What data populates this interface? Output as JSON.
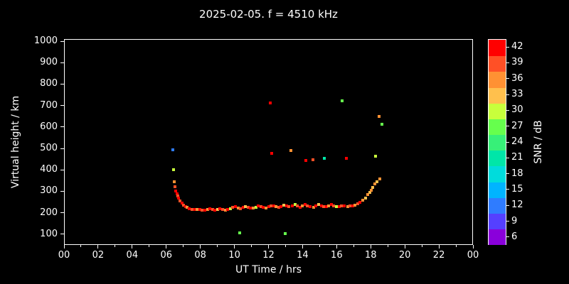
{
  "title": "2025-02-05. f = 4510 kHz",
  "axes": {
    "x": {
      "label": "UT Time / hrs",
      "min": 0,
      "max": 24,
      "tick_values": [
        0,
        2,
        4,
        6,
        8,
        10,
        12,
        14,
        16,
        18,
        20,
        22,
        24
      ],
      "tick_labels": [
        "00",
        "02",
        "04",
        "06",
        "08",
        "10",
        "12",
        "14",
        "16",
        "18",
        "20",
        "22",
        "00"
      ],
      "minor_tick_values": [
        1,
        3,
        5,
        7,
        9,
        11,
        13,
        15,
        17,
        19,
        21,
        23
      ]
    },
    "y": {
      "label": "Virtual height / km",
      "min": 50,
      "max": 1010,
      "tick_values": [
        100,
        200,
        300,
        400,
        500,
        600,
        700,
        800,
        900,
        1000
      ],
      "tick_labels": [
        "100",
        "200",
        "300",
        "400",
        "500",
        "600",
        "700",
        "800",
        "900",
        "1000"
      ]
    }
  },
  "colorbar": {
    "label": "SNR / dB",
    "min": 4.5,
    "max": 43.5,
    "tick_values": [
      6,
      9,
      12,
      15,
      18,
      21,
      24,
      27,
      30,
      33,
      36,
      39,
      42
    ],
    "tick_labels": [
      "6",
      "9",
      "12",
      "15",
      "18",
      "21",
      "24",
      "27",
      "30",
      "33",
      "36",
      "39",
      "42"
    ],
    "stops": [
      [
        6,
        "#8a00db"
      ],
      [
        9,
        "#5540ff"
      ],
      [
        12,
        "#2f7cff"
      ],
      [
        15,
        "#00b4ff"
      ],
      [
        18,
        "#00dcdc"
      ],
      [
        21,
        "#00e6a8"
      ],
      [
        24,
        "#37f078"
      ],
      [
        27,
        "#66ff4d"
      ],
      [
        30,
        "#c8ff3c"
      ],
      [
        33,
        "#ffc04d"
      ],
      [
        36,
        "#ff9133"
      ],
      [
        39,
        "#ff5026"
      ],
      [
        42,
        "#ff0000"
      ]
    ]
  },
  "chart_data": {
    "type": "scatter",
    "title": "2025-02-05. f = 4510 kHz",
    "xlabel": "UT Time / hrs",
    "ylabel": "Virtual height / km",
    "color_label": "SNR / dB",
    "xlim": [
      0,
      24
    ],
    "ylim": [
      50,
      1010
    ],
    "clim": [
      6,
      42
    ],
    "legend": "colorbar-right",
    "grid": false,
    "points_format": "[ut_hour, virtual_height_km, snr_db]",
    "points": [
      [
        6.35,
        495,
        12
      ],
      [
        6.4,
        400,
        30
      ],
      [
        6.45,
        345,
        36
      ],
      [
        6.5,
        320,
        39
      ],
      [
        6.55,
        300,
        42
      ],
      [
        6.6,
        288,
        42
      ],
      [
        6.65,
        278,
        39
      ],
      [
        6.7,
        268,
        42
      ],
      [
        6.8,
        255,
        39
      ],
      [
        6.9,
        245,
        42
      ],
      [
        7.0,
        235,
        39
      ],
      [
        7.1,
        228,
        42
      ],
      [
        7.2,
        222,
        36
      ],
      [
        7.35,
        218,
        42
      ],
      [
        7.5,
        215,
        39
      ],
      [
        7.65,
        213,
        42
      ],
      [
        7.8,
        212,
        36
      ],
      [
        7.95,
        214,
        42
      ],
      [
        8.1,
        211,
        39
      ],
      [
        8.25,
        210,
        42
      ],
      [
        8.4,
        213,
        36
      ],
      [
        8.55,
        216,
        42
      ],
      [
        8.7,
        212,
        39
      ],
      [
        8.85,
        210,
        42
      ],
      [
        9.0,
        213,
        33
      ],
      [
        9.15,
        216,
        42
      ],
      [
        9.3,
        212,
        39
      ],
      [
        9.45,
        210,
        36
      ],
      [
        9.6,
        214,
        42
      ],
      [
        9.75,
        218,
        30
      ],
      [
        9.9,
        222,
        39
      ],
      [
        10.05,
        226,
        42
      ],
      [
        10.2,
        221,
        36
      ],
      [
        10.3,
        105,
        27
      ],
      [
        10.35,
        218,
        39
      ],
      [
        10.5,
        223,
        42
      ],
      [
        10.65,
        228,
        33
      ],
      [
        10.8,
        225,
        39
      ],
      [
        10.95,
        221,
        42
      ],
      [
        11.1,
        220,
        36
      ],
      [
        11.25,
        225,
        30
      ],
      [
        11.4,
        229,
        42
      ],
      [
        11.55,
        226,
        39
      ],
      [
        11.7,
        222,
        42
      ],
      [
        11.85,
        220,
        36
      ],
      [
        12.0,
        226,
        42
      ],
      [
        12.1,
        712,
        42
      ],
      [
        12.15,
        229,
        39
      ],
      [
        12.2,
        478,
        42
      ],
      [
        12.3,
        231,
        42
      ],
      [
        12.45,
        226,
        36
      ],
      [
        12.6,
        222,
        39
      ],
      [
        12.75,
        228,
        42
      ],
      [
        12.9,
        233,
        33
      ],
      [
        13.0,
        100,
        27
      ],
      [
        13.05,
        229,
        42
      ],
      [
        13.2,
        226,
        39
      ],
      [
        13.3,
        490,
        36
      ],
      [
        13.4,
        231,
        42
      ],
      [
        13.55,
        236,
        30
      ],
      [
        13.7,
        229,
        39
      ],
      [
        13.85,
        225,
        42
      ],
      [
        14.0,
        231,
        36
      ],
      [
        14.15,
        236,
        42
      ],
      [
        14.2,
        442,
        42
      ],
      [
        14.3,
        231,
        39
      ],
      [
        14.45,
        228,
        42
      ],
      [
        14.6,
        446,
        39
      ],
      [
        14.65,
        225,
        36
      ],
      [
        14.8,
        231,
        42
      ],
      [
        14.95,
        236,
        33
      ],
      [
        15.1,
        231,
        42
      ],
      [
        15.25,
        228,
        39
      ],
      [
        15.3,
        452,
        21
      ],
      [
        15.4,
        226,
        42
      ],
      [
        15.55,
        231,
        36
      ],
      [
        15.7,
        236,
        42
      ],
      [
        15.85,
        231,
        39
      ],
      [
        16.0,
        228,
        30
      ],
      [
        16.15,
        226,
        42
      ],
      [
        16.3,
        231,
        39
      ],
      [
        16.35,
        722,
        27
      ],
      [
        16.45,
        229,
        42
      ],
      [
        16.6,
        452,
        42
      ],
      [
        16.65,
        226,
        36
      ],
      [
        16.8,
        231,
        39
      ],
      [
        16.95,
        229,
        42
      ],
      [
        17.1,
        234,
        36
      ],
      [
        17.25,
        240,
        39
      ],
      [
        17.4,
        248,
        42
      ],
      [
        17.55,
        258,
        36
      ],
      [
        17.7,
        268,
        33
      ],
      [
        17.85,
        282,
        36
      ],
      [
        17.95,
        295,
        33
      ],
      [
        18.05,
        305,
        36
      ],
      [
        18.15,
        318,
        33
      ],
      [
        18.25,
        332,
        36
      ],
      [
        18.3,
        465,
        30
      ],
      [
        18.4,
        345,
        33
      ],
      [
        18.5,
        650,
        36
      ],
      [
        18.55,
        356,
        36
      ],
      [
        18.7,
        612,
        27
      ]
    ]
  }
}
